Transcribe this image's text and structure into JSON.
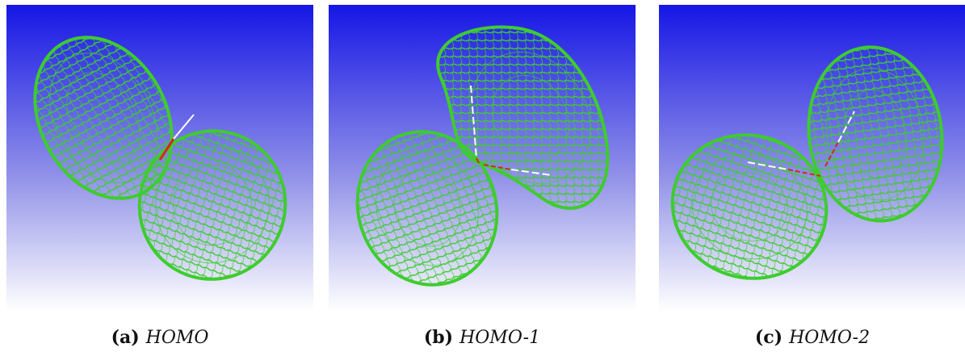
{
  "figure": {
    "panels": [
      {
        "tag": "(a)",
        "name": "HOMO"
      },
      {
        "tag": "(b)",
        "name": "HOMO-1"
      },
      {
        "tag": "(c)",
        "name": "HOMO-2"
      }
    ],
    "colors": {
      "background_top": "#1a1ae0",
      "background_bottom": "#ffffff",
      "lobe": "#3ecc2e",
      "axis_red": "#d8261c",
      "axis_white": "#ffffff"
    }
  }
}
